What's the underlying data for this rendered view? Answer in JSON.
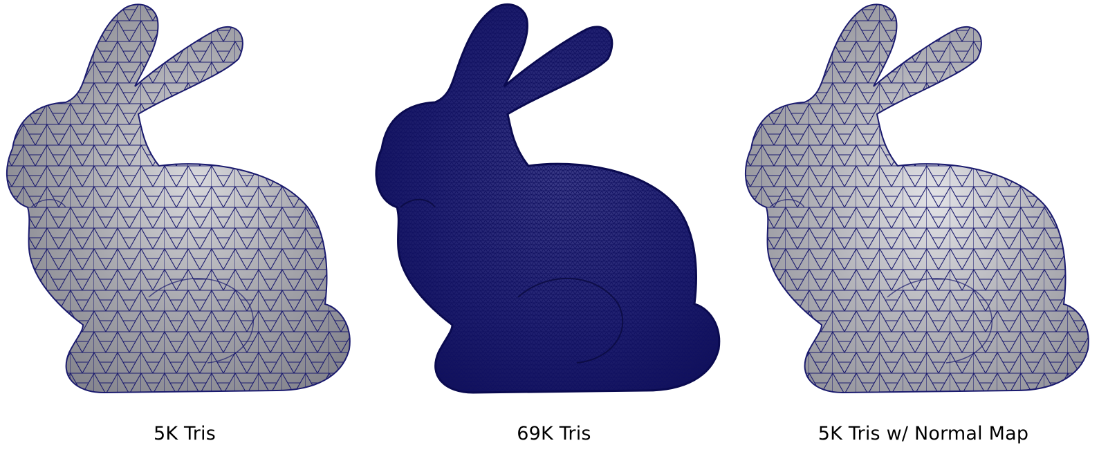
{
  "panels": [
    {
      "caption": "5K Tris",
      "mesh_density": "low",
      "wire_color": "#1a1a6e",
      "surface_color": "#a8a8ae"
    },
    {
      "caption": "69K Tris",
      "mesh_density": "high",
      "wire_color": "#0d0d5c",
      "surface_color": "#1b1b6a"
    },
    {
      "caption": "5K Tris w/ Normal Map",
      "mesh_density": "low",
      "wire_color": "#1a1a6e",
      "surface_color": "#a8a8ae"
    }
  ]
}
